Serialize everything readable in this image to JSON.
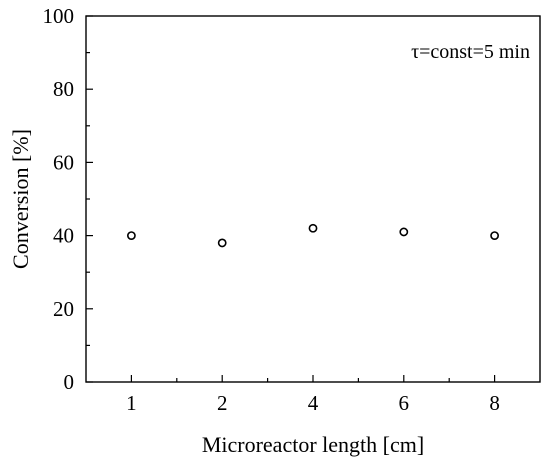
{
  "chart_data": {
    "type": "scatter",
    "categories": [
      "1",
      "2",
      "4",
      "6",
      "8"
    ],
    "series": [
      {
        "values": [
          40,
          38,
          42,
          41,
          40
        ]
      }
    ],
    "xlabel": "Microreactor length [cm]",
    "ylabel": "Conversion [%]",
    "ylim": [
      0,
      100
    ],
    "yticks": [
      "0",
      "20",
      "40",
      "60",
      "80",
      "100"
    ],
    "annotation": "τ=const=5 min",
    "marker": "open-circle",
    "grid": false,
    "colors": {
      "marker_edge": "#000000",
      "marker_fill": "#ffffff",
      "axis": "#000000"
    }
  }
}
